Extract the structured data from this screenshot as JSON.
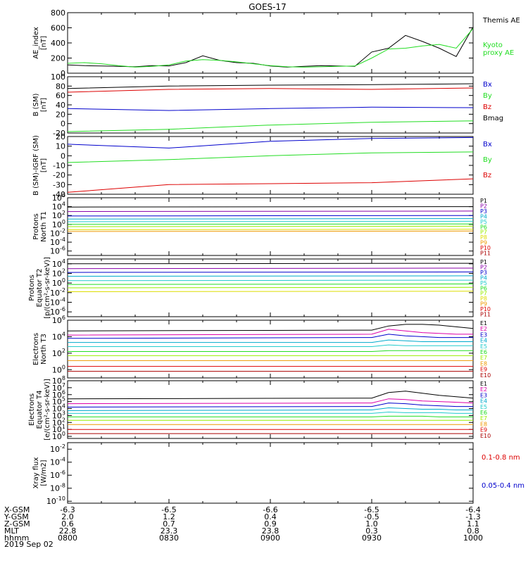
{
  "title": "GOES-17",
  "date_label": "2019 Sep 02",
  "colors": {
    "black": "#000000",
    "red": "#dd0000",
    "green": "#22dd22",
    "blue": "#0000cc",
    "purple": "#8800aa",
    "navy": "#000088",
    "cyan": "#00aacc",
    "teal": "#22cccc",
    "yellowgreen": "#99ee00",
    "yellow": "#dddd00",
    "orange": "#ee9900",
    "darkred": "#aa0000",
    "magenta": "#dd00aa"
  },
  "footer": {
    "rows": [
      {
        "label": "X-GSM",
        "values": [
          "-6.3",
          "-6.5",
          "-6.6",
          "-6.5",
          "-6.4"
        ]
      },
      {
        "label": "Y-GSM",
        "values": [
          "2.0",
          "1.2",
          "0.4",
          "-0.5",
          "-1.3"
        ]
      },
      {
        "label": "Z-GSM",
        "values": [
          "0.6",
          "0.7",
          "0.9",
          "1.0",
          "1.1"
        ]
      },
      {
        "label": "MLT",
        "values": [
          "22.8",
          "23.3",
          "23.8",
          "0.3",
          "0.8"
        ]
      },
      {
        "label": "hhmm",
        "values": [
          "0800",
          "0830",
          "0900",
          "0930",
          "1000"
        ]
      }
    ]
  },
  "chart_data": [
    {
      "type": "line",
      "ylabel": [
        "AE_index",
        "[nT]"
      ],
      "scale": "linear",
      "ylim": [
        0,
        800
      ],
      "ticks": [
        {
          "v": 0,
          "t": "0"
        },
        {
          "v": 200,
          "t": "200"
        },
        {
          "v": 400,
          "t": "400"
        },
        {
          "v": 600,
          "t": "600"
        },
        {
          "v": 800,
          "t": "800"
        }
      ],
      "x": [
        0,
        5,
        10,
        15,
        20,
        25,
        30,
        35,
        40,
        45,
        50,
        55,
        60,
        65,
        70,
        75,
        80,
        85,
        90,
        95,
        100,
        105,
        110,
        115,
        120
      ],
      "series": [
        {
          "name": "Themis AE",
          "color": "black",
          "legend_lines": [
            "Themis AE"
          ],
          "values": [
            110,
            100,
            95,
            90,
            85,
            100,
            95,
            140,
            230,
            170,
            140,
            130,
            95,
            80,
            90,
            100,
            95,
            90,
            280,
            330,
            500,
            420,
            330,
            220,
            610
          ]
        },
        {
          "name": "Kyoto proxy AE",
          "color": "green",
          "legend_lines": [
            "Kyoto",
            "proxy AE"
          ],
          "values": [
            130,
            140,
            125,
            100,
            80,
            90,
            110,
            160,
            180,
            170,
            150,
            125,
            100,
            85,
            80,
            85,
            90,
            95,
            200,
            320,
            330,
            360,
            380,
            330,
            590
          ]
        }
      ]
    },
    {
      "type": "line",
      "ylabel": [
        "B (SM)",
        "[nT]"
      ],
      "scale": "linear",
      "ylim": [
        -20,
        100
      ],
      "ticks": [
        {
          "v": -20,
          "t": "-20"
        },
        {
          "v": 0,
          "t": "0"
        },
        {
          "v": 20,
          "t": "20"
        },
        {
          "v": 40,
          "t": "40"
        },
        {
          "v": 60,
          "t": "60"
        },
        {
          "v": 80,
          "t": "80"
        },
        {
          "v": 100,
          "t": "100"
        }
      ],
      "x": [
        0,
        30,
        60,
        90,
        120
      ],
      "series": [
        {
          "name": "Bx",
          "color": "blue",
          "legend_lines": [
            "Bx"
          ],
          "values": [
            32,
            28,
            32,
            35,
            34
          ]
        },
        {
          "name": "By",
          "color": "green",
          "legend_lines": [
            "By"
          ],
          "values": [
            -17,
            -12,
            -3,
            3,
            6
          ]
        },
        {
          "name": "Bz",
          "color": "red",
          "legend_lines": [
            "Bz"
          ],
          "values": [
            67,
            73,
            75,
            73,
            76
          ]
        },
        {
          "name": "Bmag",
          "color": "black",
          "legend_lines": [
            "Bmag"
          ],
          "values": [
            75,
            80,
            82,
            83,
            85
          ]
        }
      ]
    },
    {
      "type": "line",
      "ylabel": [
        "B (SM)-IGRF (SM)",
        "[nT]"
      ],
      "scale": "linear",
      "ylim": [
        -40,
        20
      ],
      "ticks": [
        {
          "v": -40,
          "t": "-40"
        },
        {
          "v": -30,
          "t": "-30"
        },
        {
          "v": -20,
          "t": "-20"
        },
        {
          "v": -10,
          "t": "-10"
        },
        {
          "v": 0,
          "t": "0"
        },
        {
          "v": 10,
          "t": "10"
        },
        {
          "v": 20,
          "t": "20"
        }
      ],
      "x": [
        0,
        30,
        60,
        90,
        120
      ],
      "series": [
        {
          "name": "Bx",
          "color": "blue",
          "legend_lines": [
            "Bx"
          ],
          "values": [
            12,
            8,
            15,
            18,
            19
          ]
        },
        {
          "name": "By",
          "color": "green",
          "legend_lines": [
            "By"
          ],
          "values": [
            -7,
            -4,
            0,
            3,
            4
          ]
        },
        {
          "name": "Bz",
          "color": "red",
          "legend_lines": [
            "Bz"
          ],
          "values": [
            -38,
            -30,
            -29,
            -28,
            -24
          ]
        }
      ]
    },
    {
      "type": "line",
      "ylabel": [
        "Protons",
        "North T1"
      ],
      "scale": "log",
      "ylim": [
        -7,
        6
      ],
      "ticks": [
        {
          "v": 6,
          "t": "10^6"
        },
        {
          "v": 4,
          "t": "10^4"
        },
        {
          "v": 2,
          "t": "10^2"
        },
        {
          "v": 0,
          "t": "10^0"
        },
        {
          "v": -2,
          "t": "10^-2"
        },
        {
          "v": -4,
          "t": "10^-4"
        },
        {
          "v": -6,
          "t": "10^-6"
        }
      ],
      "x": [
        0,
        120
      ],
      "legend_only": [
        "P1",
        "P2",
        "P3",
        "P4",
        "P5",
        "P6",
        "P7",
        "P8",
        "P9",
        "P10",
        "P11"
      ],
      "legend_colors": [
        "black",
        "purple",
        "blue",
        "cyan",
        "teal",
        "green",
        "yellowgreen",
        "yellow",
        "orange",
        "red",
        "darkred"
      ],
      "series": [
        {
          "name": "P1",
          "color": "black",
          "values": [
            3.9,
            4.0
          ]
        },
        {
          "name": "P2",
          "color": "purple",
          "values": [
            2.9,
            3.0
          ]
        },
        {
          "name": "P3",
          "color": "blue",
          "values": [
            1.9,
            2.0
          ]
        },
        {
          "name": "P4",
          "color": "cyan",
          "values": [
            1.2,
            1.3
          ]
        },
        {
          "name": "P5",
          "color": "teal",
          "values": [
            0.6,
            0.7
          ]
        },
        {
          "name": "P6",
          "color": "green",
          "values": [
            0.0,
            0.1
          ]
        },
        {
          "name": "P7",
          "color": "yellowgreen",
          "values": [
            -0.5,
            -0.4
          ]
        },
        {
          "name": "P8",
          "color": "yellow",
          "values": [
            -1.2,
            -1.1
          ]
        },
        {
          "name": "P9",
          "color": "orange",
          "values": [
            -1.6,
            -1.5
          ]
        }
      ]
    },
    {
      "type": "line",
      "ylabel": [
        "Protons",
        "Equator T2",
        "[p/(cm²-s-sr-keV)]"
      ],
      "scale": "log",
      "ylim": [
        -7,
        5
      ],
      "ticks": [
        {
          "v": 4,
          "t": "10^4"
        },
        {
          "v": 2,
          "t": "10^2"
        },
        {
          "v": 0,
          "t": "10^0"
        },
        {
          "v": -2,
          "t": "10^-2"
        },
        {
          "v": -4,
          "t": "10^-4"
        },
        {
          "v": -6,
          "t": "10^-6"
        }
      ],
      "x": [
        0,
        120
      ],
      "legend_only": [
        "P1",
        "P2",
        "P3",
        "P4",
        "P5",
        "P6",
        "P7",
        "P8",
        "P9",
        "P10",
        "P11"
      ],
      "legend_colors": [
        "black",
        "purple",
        "blue",
        "cyan",
        "teal",
        "green",
        "yellowgreen",
        "yellow",
        "orange",
        "red",
        "darkred"
      ],
      "series": [
        {
          "name": "P1",
          "color": "black",
          "values": [
            4.0,
            4.1
          ]
        },
        {
          "name": "P2",
          "color": "purple",
          "values": [
            3.0,
            3.1
          ]
        },
        {
          "name": "P3",
          "color": "blue",
          "values": [
            2.2,
            2.3
          ]
        },
        {
          "name": "P4",
          "color": "cyan",
          "values": [
            1.4,
            1.5
          ]
        },
        {
          "name": "P5",
          "color": "teal",
          "values": [
            0.5,
            0.6
          ]
        },
        {
          "name": "P6",
          "color": "green",
          "values": [
            -0.3,
            -0.2
          ]
        },
        {
          "name": "P7",
          "color": "yellowgreen",
          "values": [
            -1.0,
            -0.9
          ]
        },
        {
          "name": "P8",
          "color": "yellow",
          "values": [
            -1.8,
            -1.7
          ]
        }
      ]
    },
    {
      "type": "line",
      "ylabel": [
        "Electrons",
        "North T3"
      ],
      "scale": "log",
      "ylim": [
        -1,
        6
      ],
      "ticks": [
        {
          "v": 6,
          "t": "10^6"
        },
        {
          "v": 4,
          "t": "10^4"
        },
        {
          "v": 2,
          "t": "10^2"
        },
        {
          "v": 0,
          "t": "10^0"
        }
      ],
      "x": [
        0,
        90,
        95,
        100,
        105,
        110,
        115,
        120
      ],
      "legend_only": [
        "E1",
        "E2",
        "E3",
        "E4",
        "E5",
        "E6",
        "E7",
        "E8",
        "E9",
        "E10"
      ],
      "legend_colors": [
        "black",
        "magenta",
        "blue",
        "cyan",
        "teal",
        "green",
        "yellowgreen",
        "orange",
        "red",
        "darkred"
      ],
      "series": [
        {
          "name": "E1",
          "color": "black",
          "values": [
            4.7,
            4.8,
            5.3,
            5.5,
            5.5,
            5.4,
            5.2,
            5.0
          ]
        },
        {
          "name": "E2",
          "color": "magenta",
          "values": [
            4.2,
            4.3,
            4.9,
            4.7,
            4.5,
            4.4,
            4.3,
            4.3
          ]
        },
        {
          "name": "E3",
          "color": "blue",
          "values": [
            3.8,
            3.9,
            4.3,
            4.1,
            4.0,
            3.9,
            3.9,
            3.9
          ]
        },
        {
          "name": "E4",
          "color": "cyan",
          "values": [
            3.3,
            3.3,
            3.6,
            3.5,
            3.4,
            3.4,
            3.4,
            3.4
          ]
        },
        {
          "name": "E5",
          "color": "teal",
          "values": [
            2.8,
            2.8,
            3.0,
            2.9,
            2.9,
            2.9,
            2.9,
            2.9
          ]
        },
        {
          "name": "E6",
          "color": "green",
          "values": [
            2.2,
            2.2,
            2.3,
            2.3,
            2.3,
            2.3,
            2.3,
            2.3
          ]
        },
        {
          "name": "E7",
          "color": "yellowgreen",
          "values": [
            1.7,
            1.7,
            1.7,
            1.7,
            1.7,
            1.7,
            1.7,
            1.7
          ]
        },
        {
          "name": "E8",
          "color": "orange",
          "values": [
            1.1,
            1.1,
            1.1,
            1.1,
            1.1,
            1.1,
            1.1,
            1.1
          ]
        },
        {
          "name": "E9",
          "color": "red",
          "values": [
            0.4,
            0.4,
            0.4,
            0.4,
            0.4,
            0.4,
            0.4,
            0.4
          ]
        },
        {
          "name": "E10",
          "color": "darkred",
          "values": [
            -0.2,
            -0.2,
            -0.2,
            -0.2,
            -0.2,
            -0.2,
            -0.2,
            -0.2
          ]
        }
      ]
    },
    {
      "type": "line",
      "ylabel": [
        "Electrons",
        "Equator T4",
        "[e/(cm²-s-sr-keV)]"
      ],
      "scale": "log",
      "ylim": [
        -0.3,
        8
      ],
      "ticks": [
        {
          "v": 8,
          "t": "10^8"
        },
        {
          "v": 7,
          "t": "10^7"
        },
        {
          "v": 6,
          "t": "10^6"
        },
        {
          "v": 5,
          "t": "10^5"
        },
        {
          "v": 4,
          "t": "10^4"
        },
        {
          "v": 3,
          "t": "10^3"
        },
        {
          "v": 2,
          "t": "10^2"
        },
        {
          "v": 1,
          "t": "10^1"
        },
        {
          "v": 0,
          "t": "10^0"
        }
      ],
      "x": [
        0,
        90,
        95,
        100,
        105,
        110,
        115,
        120
      ],
      "legend_only": [
        "E1",
        "E2",
        "E3",
        "E4",
        "E5",
        "E6",
        "E7",
        "E8",
        "E9",
        "E10"
      ],
      "legend_colors": [
        "black",
        "magenta",
        "blue",
        "cyan",
        "teal",
        "green",
        "yellowgreen",
        "orange",
        "red",
        "darkred"
      ],
      "series": [
        {
          "name": "E1",
          "color": "black",
          "values": [
            5.4,
            5.5,
            6.3,
            6.5,
            6.2,
            5.9,
            5.7,
            5.5
          ]
        },
        {
          "name": "E2",
          "color": "magenta",
          "values": [
            4.7,
            4.8,
            5.4,
            5.3,
            5.1,
            5.0,
            4.9,
            4.8
          ]
        },
        {
          "name": "E3",
          "color": "blue",
          "values": [
            4.2,
            4.3,
            4.8,
            4.7,
            4.5,
            4.4,
            4.3,
            4.3
          ]
        },
        {
          "name": "E4",
          "color": "cyan",
          "values": [
            3.7,
            3.8,
            4.1,
            4.0,
            3.9,
            3.9,
            3.8,
            3.8
          ]
        },
        {
          "name": "E5",
          "color": "teal",
          "values": [
            3.3,
            3.3,
            3.5,
            3.4,
            3.4,
            3.4,
            3.3,
            3.3
          ]
        },
        {
          "name": "E6",
          "color": "green",
          "values": [
            2.8,
            2.8,
            2.9,
            2.9,
            2.9,
            2.8,
            2.8,
            2.8
          ]
        },
        {
          "name": "E7",
          "color": "yellowgreen",
          "values": [
            2.3,
            2.3,
            2.3,
            2.3,
            2.3,
            2.3,
            2.3,
            2.3
          ]
        },
        {
          "name": "E8",
          "color": "orange",
          "values": [
            1.7,
            1.7,
            1.7,
            1.7,
            1.7,
            1.7,
            1.7,
            1.7
          ]
        },
        {
          "name": "E9",
          "color": "red",
          "values": [
            1.0,
            1.0,
            1.0,
            1.0,
            1.0,
            1.0,
            1.0,
            1.0
          ]
        },
        {
          "name": "E10",
          "color": "darkred",
          "values": [
            0.4,
            0.4,
            0.4,
            0.4,
            0.4,
            0.4,
            0.4,
            0.4
          ]
        }
      ]
    },
    {
      "type": "line",
      "ylabel": [
        "Xray flux",
        "[W/m2]"
      ],
      "scale": "log",
      "ylim": [
        -10.3,
        -1
      ],
      "ticks": [
        {
          "v": -2,
          "t": "10^-2"
        },
        {
          "v": -4,
          "t": "10^-4"
        },
        {
          "v": -6,
          "t": "10^-6"
        },
        {
          "v": -8,
          "t": "10^-8"
        },
        {
          "v": -10,
          "t": "10^-10"
        }
      ],
      "x": [
        0,
        120
      ],
      "series": [],
      "legend_lines_list": [
        {
          "text": "0.1-0.8 nm",
          "color": "red"
        },
        {
          "text": "0.05-0.4 nm",
          "color": "blue"
        }
      ]
    }
  ]
}
